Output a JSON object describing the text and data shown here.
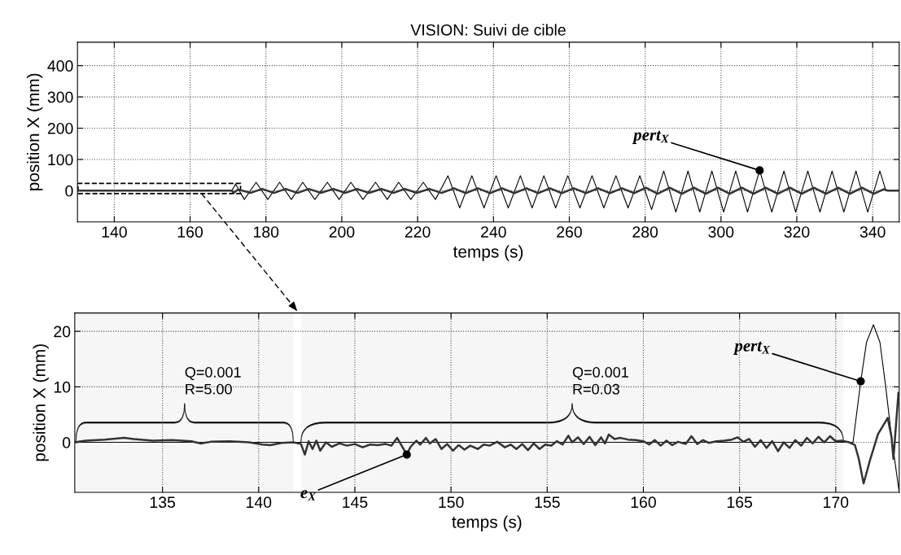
{
  "chart_data": [
    {
      "type": "line",
      "title": "VISION: Suivi de cible",
      "xlabel": "temps (s)",
      "ylabel": "position X (mm)",
      "xlim": [
        130.3,
        347
      ],
      "ylim": [
        -100,
        475
      ],
      "xticks": [
        140,
        160,
        180,
        200,
        220,
        240,
        260,
        280,
        300,
        320,
        340
      ],
      "yticks": [
        0,
        100,
        200,
        300,
        400
      ],
      "grid": true,
      "series": [
        {
          "color": "#000000",
          "x": [
            130.3,
            171.0,
            172.0,
            174.3,
            177.4,
            180.5,
            183.6,
            186.7,
            189.7,
            192.9,
            196.2,
            199.3,
            202.4,
            205.6,
            208.9,
            212.0,
            215.0,
            218.2,
            221.5,
            224.7,
            228.0,
            231.1,
            234.3,
            237.5,
            240.7,
            243.9,
            247.1,
            250.2,
            253.3,
            256.4,
            259.6,
            262.8,
            266.0,
            269.1,
            272.3,
            275.5,
            278.6,
            281.7,
            284.9,
            288.1,
            291.3,
            294.4,
            297.6,
            300.7,
            303.9,
            307.0,
            310.2,
            313.4,
            316.6,
            319.7,
            322.9,
            326.1,
            329.3,
            332.4,
            335.6,
            338.7,
            341.9,
            343.5,
            347.0
          ],
          "values": [
            0,
            0,
            21,
            -28,
            27,
            -28,
            27,
            -28,
            27,
            -28,
            27,
            -28,
            27,
            -28,
            27,
            -28,
            27,
            -28,
            27,
            -28,
            48,
            -55,
            48,
            -55,
            48,
            -55,
            48,
            -55,
            48,
            -55,
            48,
            -55,
            48,
            -55,
            48,
            -55,
            48,
            -60,
            63,
            -68,
            63,
            -68,
            63,
            -68,
            63,
            -68,
            65,
            -68,
            63,
            -68,
            63,
            -68,
            63,
            -68,
            63,
            -68,
            63,
            0,
            0
          ]
        },
        {
          "color": "#333333",
          "x": [
            130.3,
            171.0,
            171.5,
            172.7,
            175.9,
            179.0,
            182.1,
            185.2,
            188.3,
            191.3,
            194.5,
            197.8,
            200.9,
            204.0,
            207.2,
            210.5,
            213.6,
            216.6,
            219.8,
            223.1,
            226.3,
            229.6,
            232.7,
            235.9,
            239.1,
            242.3,
            245.5,
            248.7,
            251.8,
            254.9,
            258.0,
            261.2,
            264.4,
            267.6,
            270.7,
            273.9,
            277.1,
            280.2,
            283.3,
            286.5,
            289.7,
            292.9,
            296.0,
            299.2,
            302.3,
            305.5,
            308.6,
            311.8,
            315.0,
            318.2,
            321.3,
            324.5,
            327.7,
            330.9,
            334.0,
            337.2,
            340.3,
            343.0,
            344.0,
            347.0
          ],
          "values": [
            0,
            0,
            -7,
            4,
            -7,
            6,
            -7,
            6,
            -7,
            6,
            -7,
            6,
            -7,
            6,
            -7,
            6,
            -7,
            6,
            -7,
            6,
            -7,
            8,
            -8,
            8,
            -8,
            8,
            -8,
            8,
            -8,
            8,
            -8,
            8,
            -8,
            8,
            -8,
            8,
            -8,
            10,
            -10,
            10,
            -10,
            10,
            -10,
            10,
            -10,
            10,
            -10,
            10,
            -10,
            10,
            -10,
            10,
            -10,
            10,
            -10,
            10,
            -10,
            5,
            0,
            0
          ]
        }
      ],
      "annotations": [
        {
          "text": "pert$_{X}$",
          "x": 310.2,
          "y": 65
        }
      ]
    },
    {
      "type": "line",
      "xlabel": "temps (s)",
      "ylabel": "position X (mm)",
      "xlim": [
        130.44,
        173.3
      ],
      "ylim": [
        -9,
        23.3
      ],
      "xticks": [
        135,
        140,
        145,
        150,
        155,
        160,
        165,
        170
      ],
      "yticks": [
        0,
        10,
        20
      ],
      "grid": true,
      "series": [
        {
          "color": "#000000",
          "x": [
            130.44,
            170.9,
            171.3,
            171.6,
            171.96,
            172.3,
            172.6,
            172.9,
            173.1,
            173.3
          ],
          "values": [
            0,
            0,
            11,
            18,
            21.2,
            18,
            10,
            1,
            -4,
            -9
          ]
        },
        {
          "color": "#333333",
          "x": [
            130.44,
            131.0,
            132.0,
            133.0,
            133.5,
            134.5,
            135.5,
            136.5,
            137.0,
            137.5,
            138.5,
            139.5,
            140.2,
            140.6,
            141.2,
            141.8,
            142.2,
            142.4,
            142.6,
            142.8,
            143.0,
            143.2,
            143.5,
            143.8,
            144.2,
            144.6,
            145.0,
            145.4,
            145.8,
            146.2,
            146.6,
            146.9,
            147.2,
            147.5,
            147.7,
            147.9,
            148.2,
            148.4,
            148.7,
            148.9,
            149.2,
            149.5,
            149.8,
            150.1,
            150.4,
            150.7,
            151.0,
            151.4,
            151.7,
            152.0,
            152.4,
            152.8,
            153.1,
            153.4,
            153.7,
            154.0,
            154.3,
            154.6,
            154.9,
            155.2,
            155.5,
            155.8,
            156.1,
            156.3,
            156.6,
            156.9,
            157.2,
            157.5,
            157.8,
            158.0,
            158.2,
            158.5,
            158.8,
            159.2,
            159.6,
            160.0,
            160.3,
            160.6,
            160.9,
            161.2,
            161.5,
            161.8,
            162.2,
            162.5,
            162.8,
            163.1,
            163.4,
            163.8,
            164.2,
            164.6,
            164.9,
            165.2,
            165.5,
            165.8,
            166.1,
            166.4,
            166.7,
            167.0,
            167.3,
            167.6,
            167.9,
            168.2,
            168.5,
            168.8,
            169.1,
            169.4,
            169.7,
            170.0,
            170.3,
            170.7,
            171.0,
            171.2,
            171.45,
            171.8,
            172.2,
            172.7,
            172.9,
            173.0,
            173.26
          ],
          "values": [
            0,
            0.3,
            0.5,
            0.8,
            0.6,
            0.3,
            0.4,
            0.2,
            -0.2,
            0.1,
            0.2,
            0,
            -0.4,
            -0.5,
            -0.1,
            0,
            -0.3,
            -2.2,
            0.2,
            -1.2,
            0.3,
            -1.5,
            0,
            -0.8,
            -0.2,
            -0.6,
            -0.3,
            -0.9,
            -0.4,
            -0.5,
            -0.3,
            -0.6,
            0.8,
            -1,
            -2.2,
            -0.8,
            0.3,
            -0.4,
            0.8,
            -0.2,
            0.6,
            -1.2,
            -0.3,
            -1.5,
            -0.5,
            -1.3,
            -0.6,
            -1.2,
            -0.4,
            -0.6,
            0.1,
            -0.9,
            -0.4,
            -1.2,
            -0.3,
            -1.4,
            -0.2,
            -1.2,
            -0.4,
            -0.6,
            0.2,
            -0.4,
            1.2,
            0,
            0.9,
            -0.3,
            1,
            -0.5,
            0.9,
            -0.2,
            1.4,
            0.6,
            0.8,
            0.5,
            0.4,
            0.2,
            -0.4,
            0.4,
            -0.6,
            0.3,
            -0.5,
            0.1,
            -0.3,
            1.1,
            -0.3,
            0.4,
            -0.1,
            0.2,
            0.3,
            0.5,
            0.9,
            0.1,
            0.6,
            -0.8,
            0.4,
            -1,
            0.2,
            -1.6,
            0,
            -1,
            0.4,
            -0.6,
            0.8,
            -0.2,
            1,
            0,
            1.1,
            0.2,
            0.3,
            0,
            -0.5,
            -3,
            -7.4,
            -3,
            1.5,
            4.4,
            1,
            -3,
            8.9
          ]
        }
      ],
      "bands": [
        {
          "axis": "x",
          "from": 130.5,
          "to": 141.8,
          "label": "Q=0.001\nR=5.00"
        },
        {
          "axis": "x",
          "from": 142.2,
          "to": 170.4,
          "label": "Q=0.001\nR=0.03"
        }
      ],
      "annotations": [
        {
          "text": "pert$_{X}$",
          "x": 171.3,
          "y": 11
        },
        {
          "text": "e$_{X}$",
          "x": 147.7,
          "y": -2.2
        }
      ]
    }
  ]
}
